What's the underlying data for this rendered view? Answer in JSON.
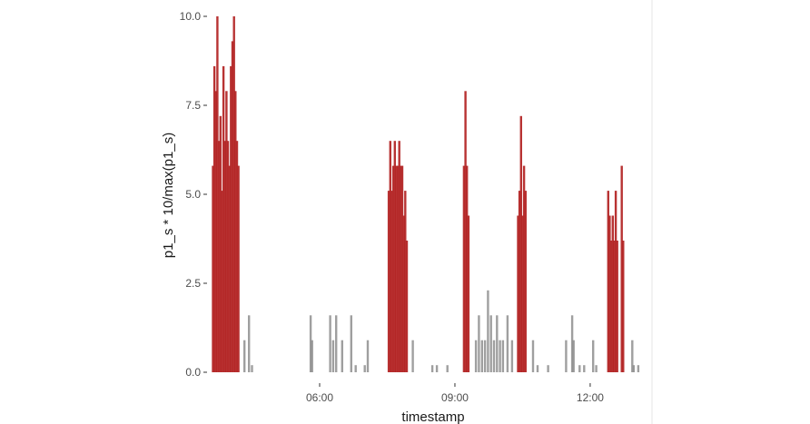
{
  "chart_data": {
    "type": "bar",
    "xlabel": "timestamp",
    "ylabel": "p1_s * 10/max(p1_s)",
    "ylim": [
      0,
      10
    ],
    "y_ticks": [
      "0.0",
      "2.5",
      "5.0",
      "7.5",
      "10.0"
    ],
    "y_tick_values": [
      0,
      2.5,
      5,
      7.5,
      10
    ],
    "xlim": [
      "03:35",
      "13:15"
    ],
    "x_ticks": [
      "06:00",
      "09:00",
      "12:00"
    ],
    "grid": false,
    "background": "#ffffff",
    "series": [
      {
        "color": "#b22222",
        "bars": [
          {
            "t": "03:38",
            "v": 5.8
          },
          {
            "t": "03:40",
            "v": 8.6
          },
          {
            "t": "03:42",
            "v": 7.9
          },
          {
            "t": "03:44",
            "v": 10.0
          },
          {
            "t": "03:46",
            "v": 6.5
          },
          {
            "t": "03:48",
            "v": 7.2
          },
          {
            "t": "03:50",
            "v": 5.1
          },
          {
            "t": "03:52",
            "v": 8.6
          },
          {
            "t": "03:54",
            "v": 6.5
          },
          {
            "t": "03:56",
            "v": 7.9
          },
          {
            "t": "03:58",
            "v": 6.5
          },
          {
            "t": "04:00",
            "v": 5.8
          },
          {
            "t": "04:02",
            "v": 8.6
          },
          {
            "t": "04:04",
            "v": 9.3
          },
          {
            "t": "04:06",
            "v": 10.0
          },
          {
            "t": "04:08",
            "v": 7.9
          },
          {
            "t": "04:10",
            "v": 6.5
          },
          {
            "t": "04:12",
            "v": 5.8
          },
          {
            "t": "07:32",
            "v": 5.1
          },
          {
            "t": "07:34",
            "v": 6.5
          },
          {
            "t": "07:36",
            "v": 5.1
          },
          {
            "t": "07:38",
            "v": 5.8
          },
          {
            "t": "07:40",
            "v": 6.5
          },
          {
            "t": "07:42",
            "v": 5.8
          },
          {
            "t": "07:44",
            "v": 5.8
          },
          {
            "t": "07:46",
            "v": 6.5
          },
          {
            "t": "07:48",
            "v": 5.8
          },
          {
            "t": "07:50",
            "v": 5.8
          },
          {
            "t": "07:52",
            "v": 4.4
          },
          {
            "t": "07:54",
            "v": 5.1
          },
          {
            "t": "07:56",
            "v": 3.7
          },
          {
            "t": "09:12",
            "v": 5.8
          },
          {
            "t": "09:14",
            "v": 7.9
          },
          {
            "t": "09:16",
            "v": 5.8
          },
          {
            "t": "09:18",
            "v": 4.4
          },
          {
            "t": "10:24",
            "v": 4.4
          },
          {
            "t": "10:26",
            "v": 5.1
          },
          {
            "t": "10:28",
            "v": 7.2
          },
          {
            "t": "10:30",
            "v": 4.4
          },
          {
            "t": "10:32",
            "v": 5.8
          },
          {
            "t": "10:34",
            "v": 5.1
          },
          {
            "t": "12:24",
            "v": 5.1
          },
          {
            "t": "12:26",
            "v": 4.4
          },
          {
            "t": "12:28",
            "v": 3.7
          },
          {
            "t": "12:30",
            "v": 4.4
          },
          {
            "t": "12:32",
            "v": 3.7
          },
          {
            "t": "12:34",
            "v": 5.1
          },
          {
            "t": "12:36",
            "v": 3.7
          },
          {
            "t": "12:42",
            "v": 5.8
          },
          {
            "t": "12:44",
            "v": 3.7
          }
        ]
      },
      {
        "color": "#7f7f7f",
        "bars": [
          {
            "t": "04:20",
            "v": 0.9
          },
          {
            "t": "04:26",
            "v": 1.6
          },
          {
            "t": "04:30",
            "v": 0.2
          },
          {
            "t": "05:48",
            "v": 1.6
          },
          {
            "t": "05:50",
            "v": 0.9
          },
          {
            "t": "06:14",
            "v": 1.6
          },
          {
            "t": "06:18",
            "v": 0.9
          },
          {
            "t": "06:22",
            "v": 1.6
          },
          {
            "t": "06:30",
            "v": 0.9
          },
          {
            "t": "06:42",
            "v": 1.6
          },
          {
            "t": "06:48",
            "v": 0.2
          },
          {
            "t": "07:00",
            "v": 0.2
          },
          {
            "t": "07:04",
            "v": 0.9
          },
          {
            "t": "08:04",
            "v": 0.9
          },
          {
            "t": "08:30",
            "v": 0.2
          },
          {
            "t": "08:36",
            "v": 0.2
          },
          {
            "t": "08:50",
            "v": 0.2
          },
          {
            "t": "09:28",
            "v": 0.9
          },
          {
            "t": "09:32",
            "v": 1.6
          },
          {
            "t": "09:36",
            "v": 0.9
          },
          {
            "t": "09:40",
            "v": 0.9
          },
          {
            "t": "09:44",
            "v": 2.3
          },
          {
            "t": "09:48",
            "v": 1.6
          },
          {
            "t": "09:52",
            "v": 0.9
          },
          {
            "t": "09:56",
            "v": 1.6
          },
          {
            "t": "10:00",
            "v": 0.9
          },
          {
            "t": "10:04",
            "v": 0.9
          },
          {
            "t": "10:10",
            "v": 1.6
          },
          {
            "t": "10:16",
            "v": 0.9
          },
          {
            "t": "10:44",
            "v": 0.9
          },
          {
            "t": "10:50",
            "v": 0.2
          },
          {
            "t": "11:04",
            "v": 0.2
          },
          {
            "t": "11:28",
            "v": 0.9
          },
          {
            "t": "11:36",
            "v": 1.6
          },
          {
            "t": "11:38",
            "v": 0.9
          },
          {
            "t": "11:46",
            "v": 0.2
          },
          {
            "t": "11:52",
            "v": 0.2
          },
          {
            "t": "12:04",
            "v": 0.9
          },
          {
            "t": "12:08",
            "v": 0.2
          },
          {
            "t": "12:56",
            "v": 0.9
          },
          {
            "t": "12:58",
            "v": 0.2
          },
          {
            "t": "13:04",
            "v": 0.2
          }
        ]
      }
    ]
  }
}
